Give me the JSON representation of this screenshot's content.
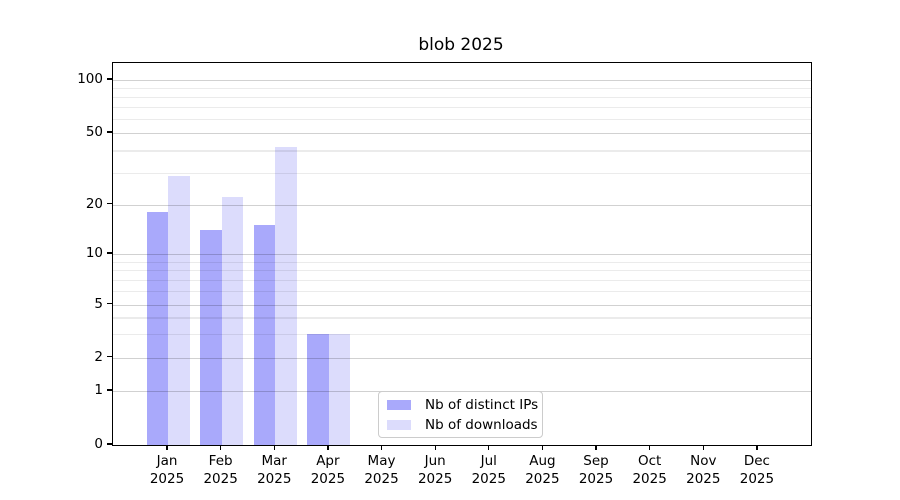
{
  "chart_data": {
    "type": "bar",
    "title": "blob 2025",
    "x": {
      "months": [
        "Jan",
        "Feb",
        "Mar",
        "Apr",
        "May",
        "Jun",
        "Jul",
        "Aug",
        "Sep",
        "Oct",
        "Nov",
        "Dec"
      ],
      "year": "2025"
    },
    "series": [
      {
        "name": "Nb of distinct IPs",
        "color": "#a9a9fb",
        "values": [
          18,
          14,
          15,
          3,
          0,
          0,
          0,
          0,
          0,
          0,
          0,
          0
        ]
      },
      {
        "name": "Nb of downloads",
        "color": "#dcdcfc",
        "values": [
          29,
          22,
          42,
          3,
          0,
          0,
          0,
          0,
          0,
          0,
          0,
          0
        ]
      }
    ],
    "y_axis": {
      "scale": "log-like with zero baseline",
      "major_ticks": [
        100,
        50,
        20,
        10,
        5,
        2,
        1,
        0
      ],
      "minor_ticks": [
        90,
        80,
        70,
        60,
        40,
        30,
        9,
        8,
        7,
        6,
        4,
        3
      ],
      "ylim": [
        0,
        115
      ]
    },
    "legend": {
      "position": "inside-bottom, left of center"
    },
    "grid": true,
    "colors": {
      "axis": "#000000",
      "grid_major": "rgba(0,0,0,0.18)",
      "grid_minor": "rgba(0,0,0,0.08)"
    }
  }
}
